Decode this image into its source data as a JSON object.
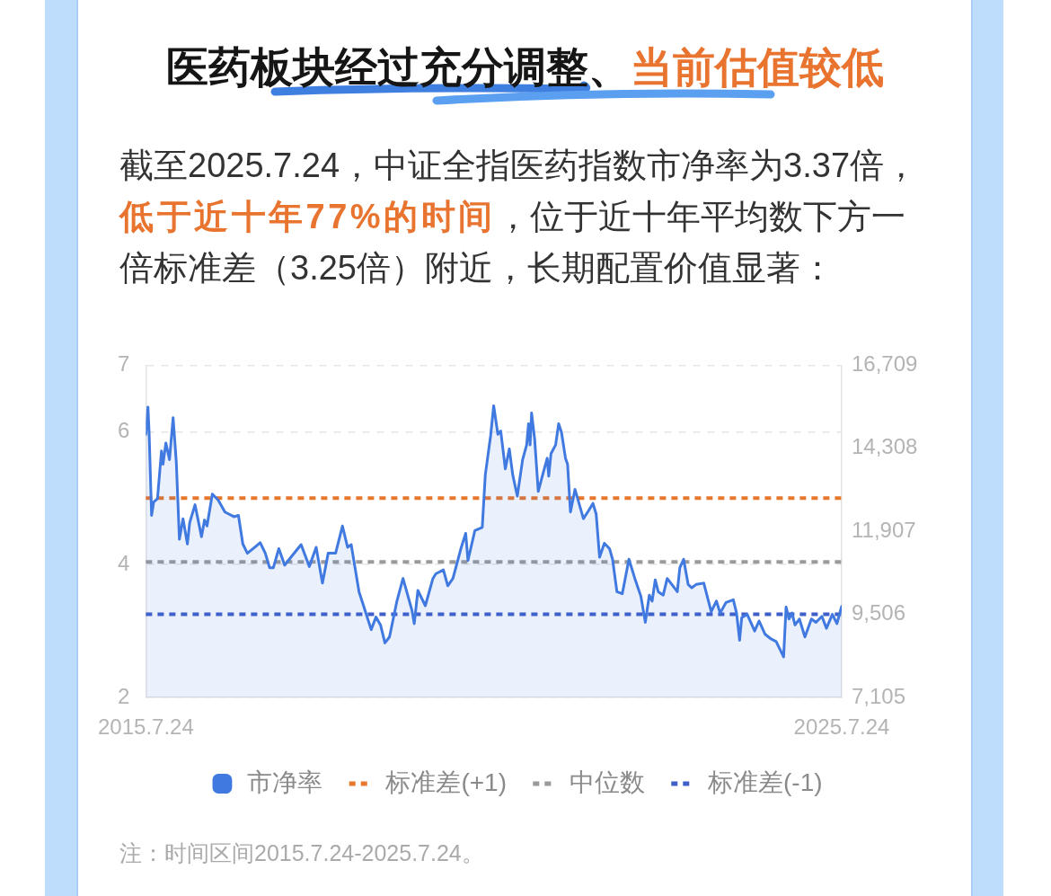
{
  "chart_data": {
    "type": "area",
    "title": "医药板块经过充分调整、当前估值较低",
    "subtitle": "截至2025.7.24，中证全指医药指数市净率为3.37倍，低于近十年77%的时间，位于近十年平均数下方一倍标准差（3.25倍）附近，长期配置价值显著：",
    "x": [
      "2015-07-24",
      "2015-08-04",
      "2015-08-10",
      "2015-08-23",
      "2015-09-03",
      "2015-09-23",
      "2015-10-14",
      "2015-10-22",
      "2015-11-06",
      "2015-11-25",
      "2015-12-14",
      "2015-12-31",
      "2016-01-16",
      "2016-02-04",
      "2016-02-27",
      "2016-03-10",
      "2016-04-07",
      "2016-05-11",
      "2016-05-27",
      "2016-06-09",
      "2016-07-07",
      "2016-08-07",
      "2016-09-11",
      "2016-10-28",
      "2016-11-21",
      "2016-12-14",
      "2017-01-07",
      "2017-02-15",
      "2017-03-15",
      "2017-04-11",
      "2017-05-04",
      "2017-05-23",
      "2017-06-21",
      "2017-07-22",
      "2017-08-15",
      "2017-10-16",
      "2017-11-28",
      "2018-01-03",
      "2018-02-05",
      "2018-03-07",
      "2018-04-15",
      "2018-05-21",
      "2018-06-17",
      "2018-07-06",
      "2018-08-16",
      "2018-09-11",
      "2018-10-19",
      "2018-11-13",
      "2018-12-07",
      "2018-12-30",
      "2019-01-23",
      "2019-03-03",
      "2019-04-04",
      "2019-05-21",
      "2019-06-02",
      "2019-06-21",
      "2019-07-30",
      "2019-09-08",
      "2019-09-23",
      "2019-11-02",
      "2019-11-25",
      "2019-12-22",
      "2020-02-04",
      "2020-02-27",
      "2020-03-10",
      "2020-04-15",
      "2020-05-24",
      "2020-06-09",
      "2020-07-07",
      "2020-07-23",
      "2020-08-14",
      "2020-08-29",
      "2020-09-22",
      "2020-10-13",
      "2020-10-31",
      "2020-11-24",
      "2020-12-22",
      "2021-01-12",
      "2021-01-22",
      "2021-01-30",
      "2021-02-07",
      "2021-02-23",
      "2021-03-14",
      "2021-04-06",
      "2021-04-30",
      "2021-05-08",
      "2021-05-20",
      "2021-06-13",
      "2021-06-29",
      "2021-07-14",
      "2021-08-04",
      "2021-08-15",
      "2021-08-30",
      "2021-09-23",
      "2021-11-06",
      "2021-12-03",
      "2021-12-26",
      "2022-01-12",
      "2022-01-30",
      "2022-02-24",
      "2022-03-23",
      "2022-04-08",
      "2022-05-01",
      "2022-05-29",
      "2022-07-03",
      "2022-08-03",
      "2022-09-04",
      "2022-09-27",
      "2022-10-18",
      "2022-11-02",
      "2022-11-18",
      "2022-12-04",
      "2022-12-30",
      "2023-01-20",
      "2023-03-14",
      "2023-03-27",
      "2023-04-16",
      "2023-05-10",
      "2023-05-29",
      "2023-06-21",
      "2023-07-31",
      "2023-09-08",
      "2023-10-05",
      "2023-10-25",
      "2023-11-25",
      "2024-01-02",
      "2024-01-19",
      "2024-02-04",
      "2024-02-15",
      "2024-03-15",
      "2024-04-23",
      "2024-05-16",
      "2024-06-17",
      "2024-07-18",
      "2024-08-14",
      "2024-09-22",
      "2024-10-05",
      "2024-10-20",
      "2024-11-05",
      "2024-11-21",
      "2024-12-14",
      "2025-01-12",
      "2025-02-15",
      "2025-03-11",
      "2025-04-11",
      "2025-05-05",
      "2025-06-05",
      "2025-06-29",
      "2025-07-24"
    ],
    "series": [
      {
        "name": "市净率",
        "color": "#4079e0",
        "values": [
          5.96,
          6.37,
          5.99,
          4.74,
          4.94,
          4.99,
          5.71,
          5.51,
          5.83,
          5.58,
          6.21,
          5.53,
          4.38,
          4.69,
          4.31,
          4.63,
          4.9,
          4.42,
          4.67,
          4.58,
          5.06,
          4.97,
          4.79,
          4.72,
          4.74,
          4.31,
          4.17,
          4.26,
          4.33,
          4.17,
          3.95,
          3.95,
          4.24,
          3.99,
          4.08,
          4.3,
          3.97,
          4.26,
          3.72,
          4.17,
          4.17,
          4.58,
          4.26,
          4.3,
          3.59,
          3.36,
          3.02,
          3.21,
          3.09,
          2.82,
          2.91,
          3.45,
          3.79,
          3.31,
          3.11,
          3.61,
          3.38,
          3.79,
          3.86,
          3.92,
          3.68,
          3.79,
          4.26,
          4.47,
          4.06,
          4.51,
          4.56,
          5.35,
          5.94,
          6.39,
          5.96,
          6.01,
          5.44,
          5.74,
          5.35,
          5.03,
          5.58,
          5.8,
          6.12,
          5.8,
          6.28,
          5.89,
          5.1,
          5.35,
          5.6,
          5.33,
          5.67,
          5.8,
          6.12,
          5.99,
          5.6,
          5.51,
          4.79,
          5.13,
          4.69,
          4.81,
          4.92,
          4.76,
          4.11,
          4.32,
          4.24,
          4.08,
          3.59,
          3.56,
          4.08,
          3.79,
          3.52,
          3.13,
          3.54,
          3.45,
          3.77,
          3.59,
          3.54,
          3.79,
          3.59,
          3.95,
          4.08,
          3.7,
          3.65,
          3.7,
          3.72,
          3.29,
          3.45,
          3.27,
          3.43,
          3.47,
          3.27,
          2.86,
          3.2,
          3.25,
          3.0,
          3.15,
          2.95,
          2.88,
          2.84,
          2.61,
          3.36,
          3.18,
          3.27,
          3.09,
          3.18,
          2.91,
          3.18,
          3.13,
          3.22,
          3.04,
          3.25,
          3.11,
          3.37
        ]
      }
    ],
    "xlim": [
      "2015-07-24",
      "2025-07-24"
    ],
    "xticks": [
      {
        "value": "2015-07-24",
        "label": "2015.7.24"
      },
      {
        "value": "2025-07-24",
        "label": "2025.7.24"
      }
    ],
    "ylim": [
      2,
      7
    ],
    "yticks": [
      2,
      4,
      6,
      7
    ],
    "y2lim": [
      7105,
      16709
    ],
    "y2ticks": [
      {
        "value": 7105,
        "label": "7,105"
      },
      {
        "value": 9506,
        "label": "9,506"
      },
      {
        "value": 11907,
        "label": "11,907"
      },
      {
        "value": 14308,
        "label": "14,308"
      },
      {
        "value": 16709,
        "label": "16,709"
      }
    ],
    "ref_lines": [
      {
        "axis": "y",
        "value": 5.0,
        "label": "标准差(+1)",
        "color": "#e8772e",
        "line_style": "dashed"
      },
      {
        "axis": "y",
        "value": 4.04,
        "label": "中位数",
        "color": "#9a9a9a",
        "line_style": "dashed"
      },
      {
        "axis": "y",
        "value": 3.25,
        "label": "标准差(-1)",
        "color": "#3f5fc8",
        "line_style": "dashed"
      }
    ],
    "grid": "y",
    "legend": "bottom",
    "annotations": [
      "注：时间区间2015.7.24-2025.7.24。"
    ]
  }
}
